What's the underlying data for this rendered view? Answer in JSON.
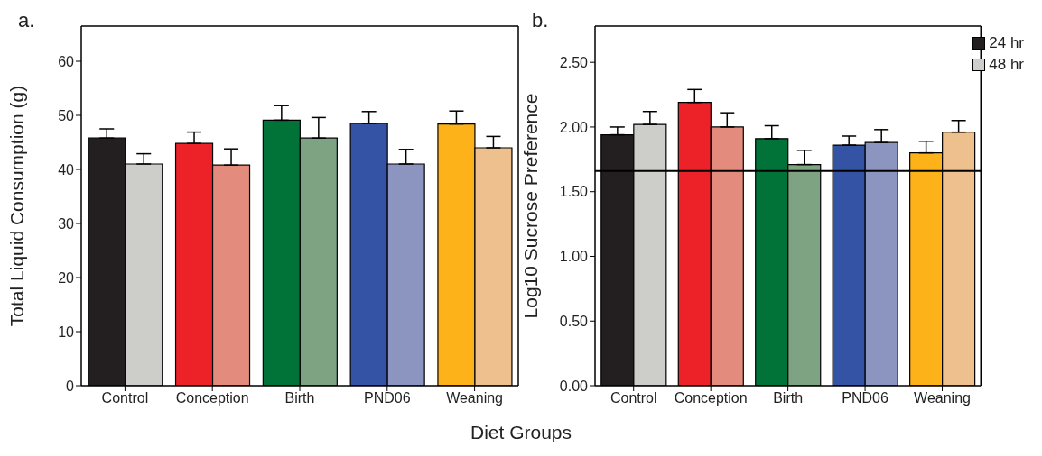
{
  "chart_data": [
    {
      "type": "bar",
      "title": "a.",
      "ylabel": "Total Liquid Consumption (g)",
      "xlabel": "Diet Groups",
      "categories": [
        "Control",
        "Conception",
        "Birth",
        "PND06",
        "Weaning"
      ],
      "ylim": [
        0,
        66.5
      ],
      "yticks": [
        0,
        10,
        20,
        30,
        40,
        50,
        60
      ],
      "series": [
        {
          "colors": [
            "#231f20",
            "#ed2228",
            "#017338",
            "#3453a4",
            "#fcb218"
          ],
          "values": [
            45.8,
            44.8,
            49.1,
            48.5,
            48.4
          ],
          "errors": [
            1.7,
            2.1,
            2.7,
            2.2,
            2.4
          ]
        },
        {
          "colors": [
            "#cdcdc9",
            "#e38c7e",
            "#7ea383",
            "#8c94c0",
            "#edc08d"
          ],
          "values": [
            41.0,
            40.8,
            45.8,
            41.0,
            44.0
          ],
          "errors": [
            1.9,
            3.0,
            3.8,
            2.7,
            2.1
          ]
        }
      ]
    },
    {
      "type": "bar",
      "title": "b.",
      "ylabel": "Log10 Sucrose Preference",
      "categories": [
        "Control",
        "Conception",
        "Birth",
        "PND06",
        "Weaning"
      ],
      "ylim": [
        0,
        2.78
      ],
      "yticks": [
        {
          "value": 0,
          "label": "0.00"
        },
        {
          "value": 0.5,
          "label": "0.50"
        },
        {
          "value": 1,
          "label": "1.00"
        },
        {
          "value": 1.5,
          "label": "1.50"
        },
        {
          "value": 2,
          "label": "2.00"
        },
        {
          "value": 2.5,
          "label": "2.50"
        }
      ],
      "legend": "top right",
      "ref_lines": [
        {
          "axis": "y",
          "value": 1.66,
          "color": "#000000"
        }
      ],
      "series": [
        {
          "name": "24 hr",
          "color": "#231f20",
          "colors": [
            "#231f20",
            "#ed2228",
            "#017338",
            "#3453a4",
            "#fcb218"
          ],
          "values": [
            1.94,
            2.19,
            1.91,
            1.86,
            1.8
          ],
          "errors": [
            0.06,
            0.1,
            0.1,
            0.07,
            0.09
          ]
        },
        {
          "name": "48 hr",
          "color": "#cdcdc9",
          "colors": [
            "#cdcdc9",
            "#e38c7e",
            "#7ea383",
            "#8c94c0",
            "#edc08d"
          ],
          "values": [
            2.02,
            2.0,
            1.71,
            1.88,
            1.96
          ],
          "errors": [
            0.1,
            0.11,
            0.11,
            0.1,
            0.09
          ]
        }
      ]
    }
  ]
}
